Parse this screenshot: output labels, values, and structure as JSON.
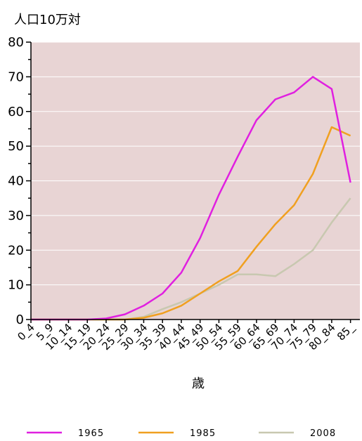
{
  "chart_data": {
    "type": "line",
    "y_unit_label": "人口10万対",
    "xlabel": "歳",
    "ylim": [
      0,
      80
    ],
    "yticks": [
      0,
      10,
      20,
      30,
      40,
      50,
      60,
      70,
      80
    ],
    "categories": [
      "0_4",
      "5_9",
      "10_14",
      "15_19",
      "20_24",
      "25_29",
      "30_34",
      "35_39",
      "40_44",
      "45_49",
      "50_54",
      "55_59",
      "60_64",
      "65_69",
      "70_74",
      "75_79",
      "80_84",
      "85_"
    ],
    "grid": "horizontal",
    "plot_background": "#e8d4d4",
    "legend_position": "bottom",
    "series": [
      {
        "name": "1965",
        "color": "#e020e0",
        "values": [
          0,
          0,
          0,
          0,
          0.3,
          1.5,
          4,
          7.5,
          13.5,
          23.5,
          36,
          47,
          57.5,
          63.5,
          65.5,
          70,
          66.5,
          39.5
        ]
      },
      {
        "name": "1985",
        "color": "#f0a020",
        "values": [
          0,
          0,
          0,
          0,
          0,
          0,
          0.5,
          1.8,
          4,
          7.5,
          11,
          14,
          21,
          27.5,
          33,
          42,
          55.5,
          53
        ]
      },
      {
        "name": "2008",
        "color": "#c8c8b0",
        "values": [
          0,
          0,
          0,
          0,
          0,
          0,
          0.8,
          3,
          5,
          7.5,
          10,
          13,
          13,
          12.5,
          16,
          20,
          28,
          35
        ]
      }
    ]
  }
}
